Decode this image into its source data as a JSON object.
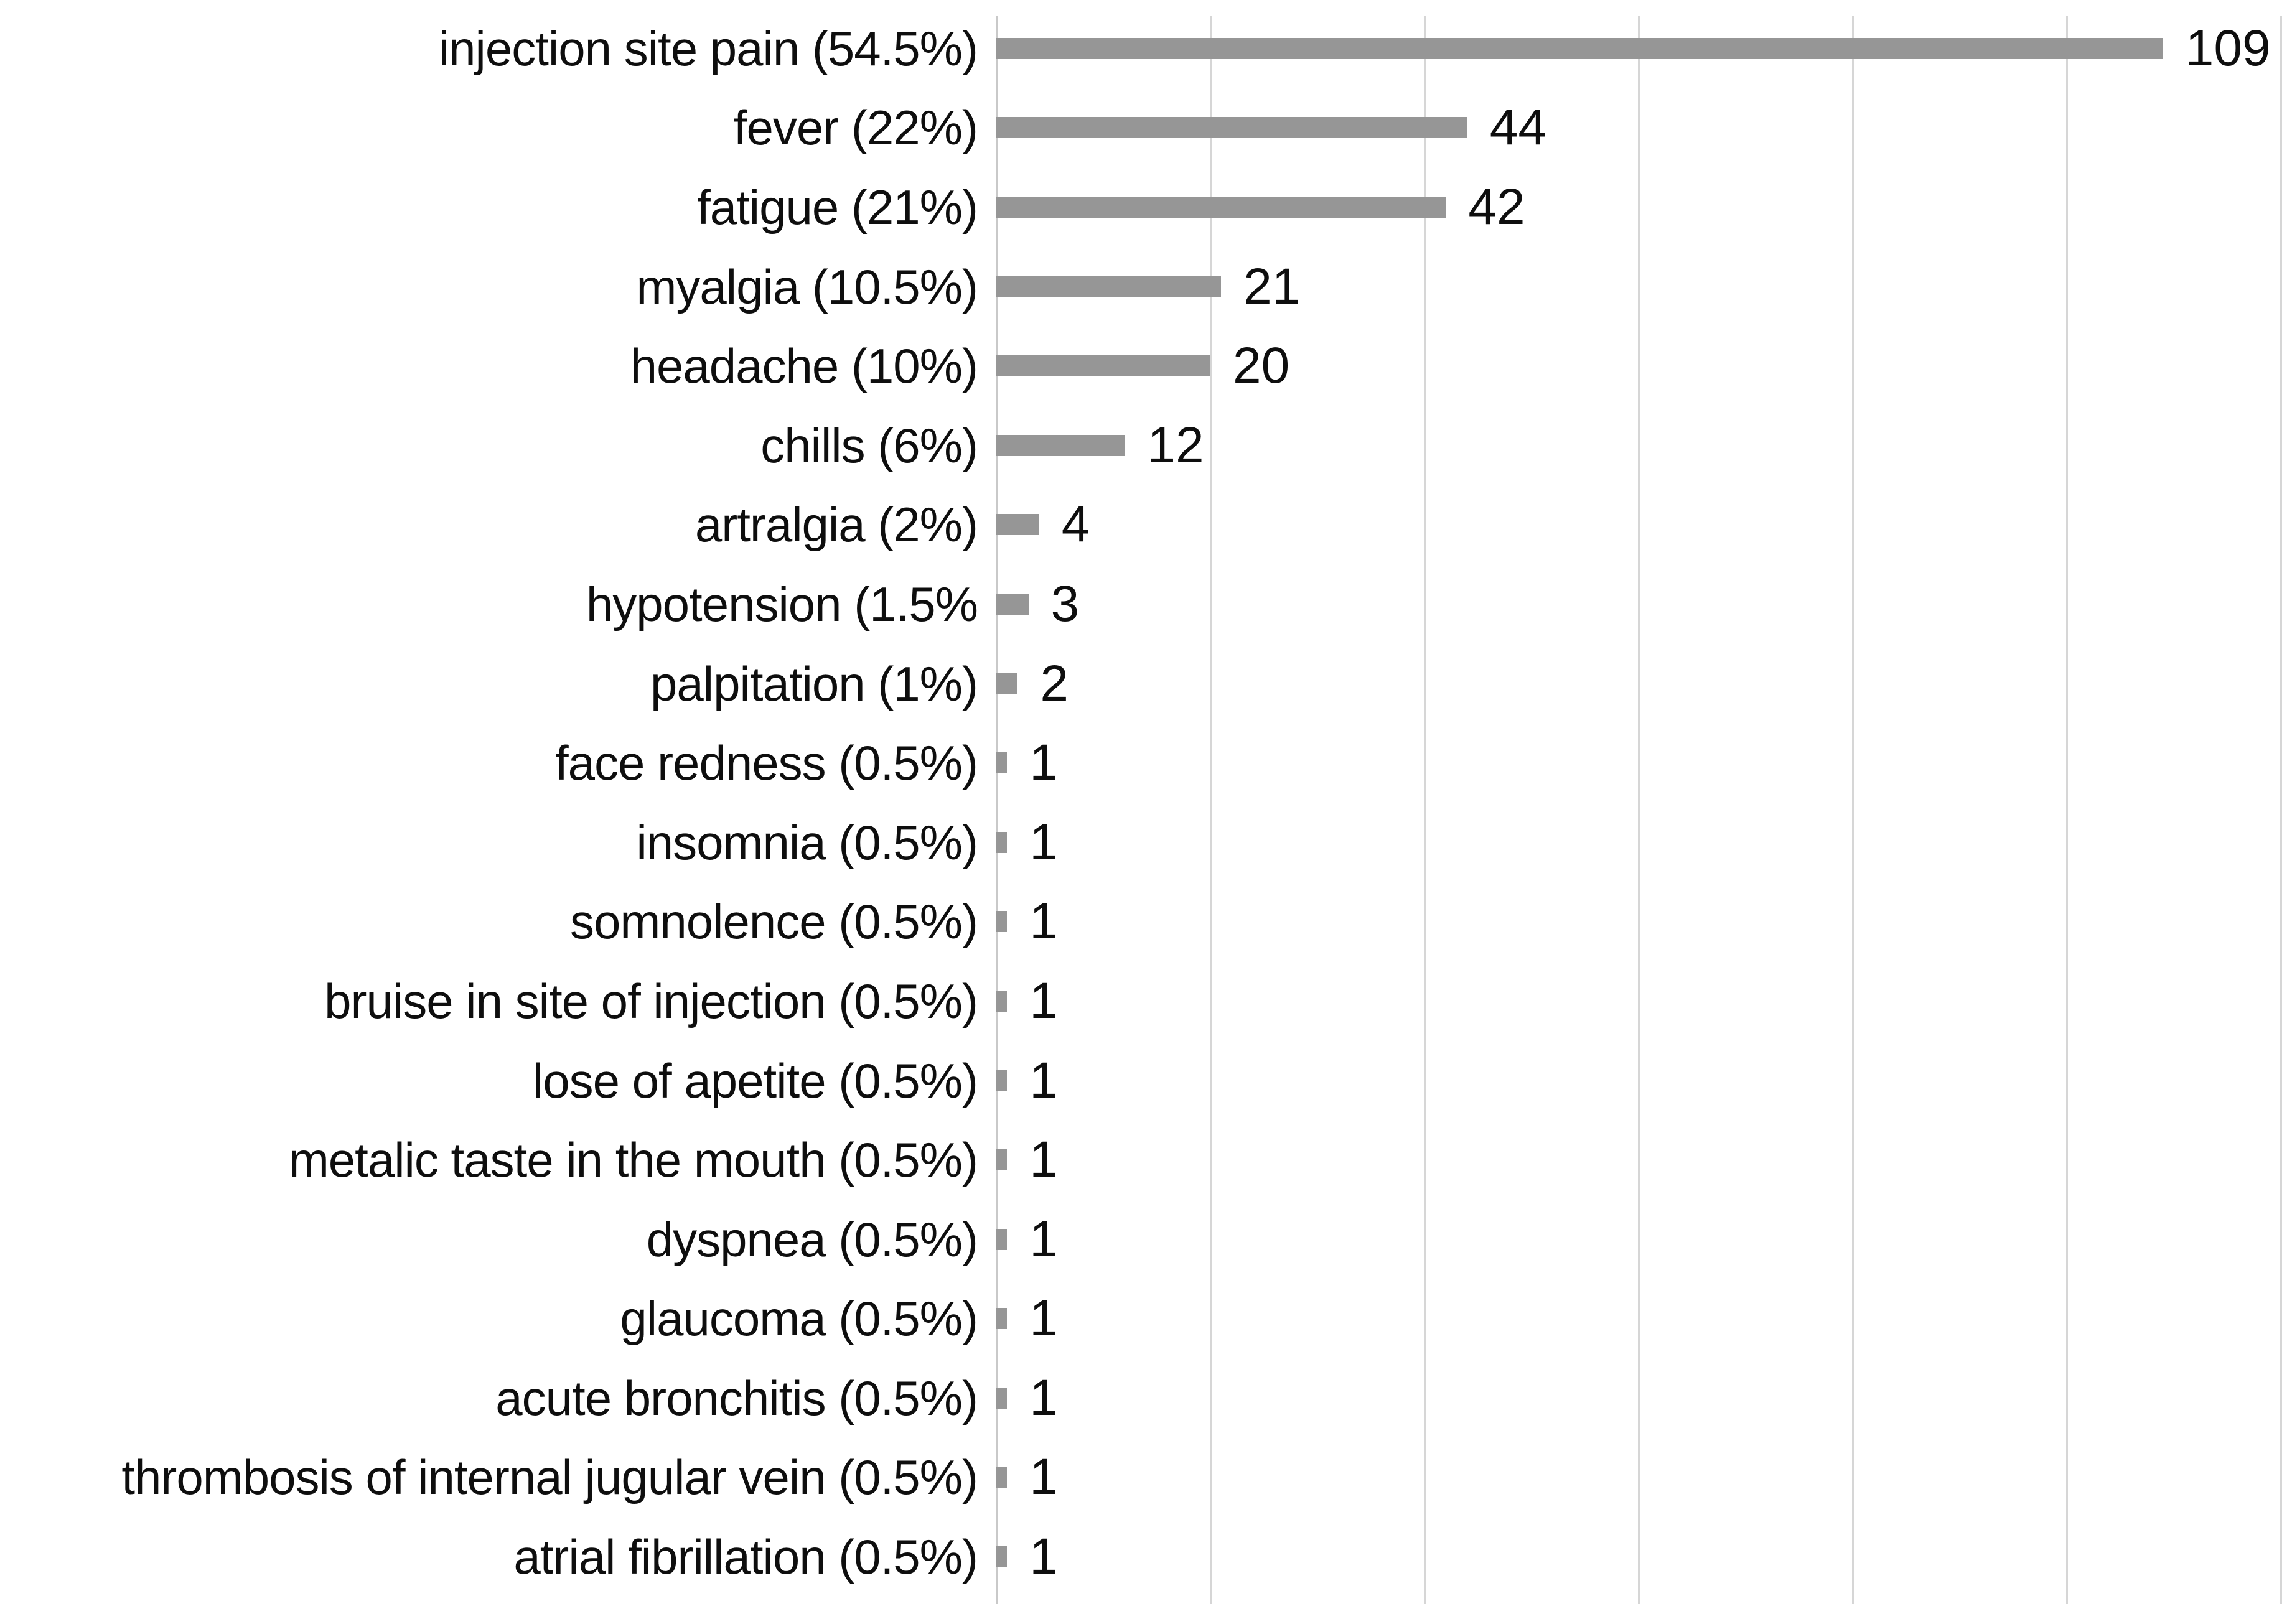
{
  "chart_data": {
    "type": "bar",
    "orientation": "horizontal",
    "title": "",
    "xlabel": "",
    "ylabel": "",
    "categories": [
      "injection site pain (54.5%)",
      "fever (22%)",
      "fatigue (21%)",
      "myalgia (10.5%)",
      "headache (10%)",
      "chills (6%)",
      "artralgia (2%)",
      "hypotension (1.5%",
      "palpitation (1%)",
      "face redness (0.5%)",
      "insomnia (0.5%)",
      "somnolence (0.5%)",
      "bruise in site of injection (0.5%)",
      "lose of apetite (0.5%)",
      "metalic taste in the mouth (0.5%)",
      "dyspnea (0.5%)",
      "glaucoma (0.5%)",
      "acute bronchitis (0.5%)",
      "thrombosis of internal jugular vein (0.5%)",
      "atrial fibrillation (0.5%)"
    ],
    "values": [
      109,
      44,
      42,
      21,
      20,
      12,
      4,
      3,
      2,
      1,
      1,
      1,
      1,
      1,
      1,
      1,
      1,
      1,
      1,
      1
    ],
    "xlim": [
      0,
      120
    ],
    "gridline_interval": 20,
    "grid": "vertical-only",
    "legend": "none",
    "value_labels": "outside-end",
    "bar_color": "#969696",
    "gridline_color": "#d6d6d6",
    "axis_color": "#c9c9c9",
    "text_color": "#0e0e0e"
  }
}
